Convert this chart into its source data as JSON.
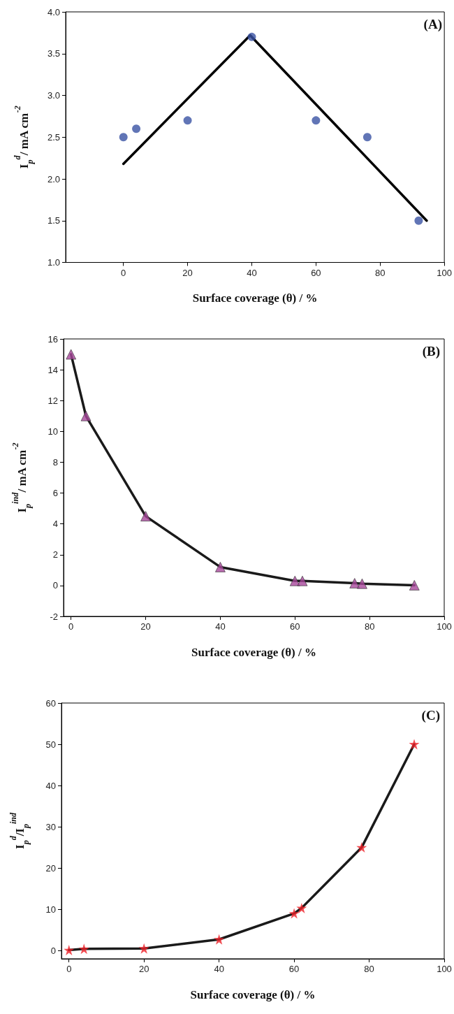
{
  "chart_data": [
    {
      "type": "scatter",
      "xlabel": "Surface coverage (θ) / %",
      "ylabel": "I$_{p}$$^{d}$/ mA cm$^{-2}$",
      "annotations": [
        "(A)"
      ],
      "xlim": [
        -18,
        100
      ],
      "xticks": [
        0,
        20,
        40,
        60,
        80,
        100
      ],
      "ylim": [
        1.0,
        4.0
      ],
      "yticks": [
        {
          "value": 1,
          "label": "1.0"
        },
        {
          "value": 1.5,
          "label": "1.5"
        },
        {
          "value": 2,
          "label": "2.0"
        },
        {
          "value": 2.5,
          "label": "2.5"
        },
        {
          "value": 3,
          "label": "3.0"
        },
        {
          "value": 3.5,
          "label": "3.5"
        },
        {
          "value": 4,
          "label": "4.0"
        }
      ],
      "grid": false,
      "series": [
        {
          "color": "#3a53a4",
          "marker": "circle",
          "x": [
            0,
            4,
            20,
            40,
            60,
            76,
            92
          ],
          "values": [
            2.5,
            2.6,
            2.7,
            3.7,
            2.7,
            2.5,
            1.5
          ]
        },
        {
          "type": "line",
          "color": "#000000",
          "marker": "none",
          "line_style": "solid",
          "x": [
            0,
            39.5,
            94.5
          ],
          "values": [
            2.18,
            3.72,
            1.5
          ]
        }
      ]
    },
    {
      "type": "line",
      "xlabel": "Surface coverage (θ) / %",
      "ylabel": "I$_{p}$$^{ind}$/ mA cm$^{-2}$",
      "annotations": [
        "(B)"
      ],
      "xlim": [
        -2,
        100
      ],
      "xticks": [
        0,
        20,
        40,
        60,
        80,
        100
      ],
      "ylim": [
        -2,
        16
      ],
      "yticks": [
        -2,
        0,
        2,
        4,
        6,
        8,
        10,
        12,
        14,
        16
      ],
      "grid": false,
      "series": [
        {
          "color": "#1a1a1a",
          "marker": "none",
          "line_style": "solid",
          "x": [
            0,
            4,
            20,
            40,
            60,
            62,
            76,
            78,
            92
          ],
          "values": [
            15,
            11,
            4.5,
            1.2,
            0.3,
            0.3,
            0.15,
            0.12,
            0.02
          ]
        },
        {
          "type": "scatter",
          "color": "#a8479b",
          "marker": "triangle",
          "x": [
            0,
            4,
            20,
            40,
            60,
            62,
            76,
            78,
            92
          ],
          "values": [
            15,
            11,
            4.5,
            1.2,
            0.3,
            0.3,
            0.15,
            0.12,
            0.02
          ]
        }
      ]
    },
    {
      "type": "line",
      "xlabel": "Surface coverage (θ) / %",
      "ylabel": "I$_{p}$$^{d}$/I$_{p}$$^{ind}$",
      "annotations": [
        "(C)"
      ],
      "xlim": [
        -2,
        100
      ],
      "xticks": [
        0,
        20,
        40,
        60,
        80,
        100
      ],
      "ylim": [
        -2,
        60
      ],
      "yticks": [
        0,
        10,
        20,
        30,
        40,
        50,
        60
      ],
      "grid": false,
      "series": [
        {
          "color": "#1a1a1a",
          "marker": "none",
          "line_style": "solid",
          "x": [
            0,
            4,
            20,
            40,
            60,
            62,
            78,
            92
          ],
          "values": [
            0.1,
            0.4,
            0.5,
            2.7,
            9,
            10.3,
            25,
            50
          ]
        },
        {
          "type": "scatter",
          "color": "#ee2028",
          "marker": "star",
          "x": [
            0,
            4,
            20,
            40,
            60,
            62,
            78,
            92
          ],
          "values": [
            0.1,
            0.4,
            0.5,
            2.7,
            9,
            10.3,
            25,
            50
          ]
        }
      ]
    }
  ]
}
